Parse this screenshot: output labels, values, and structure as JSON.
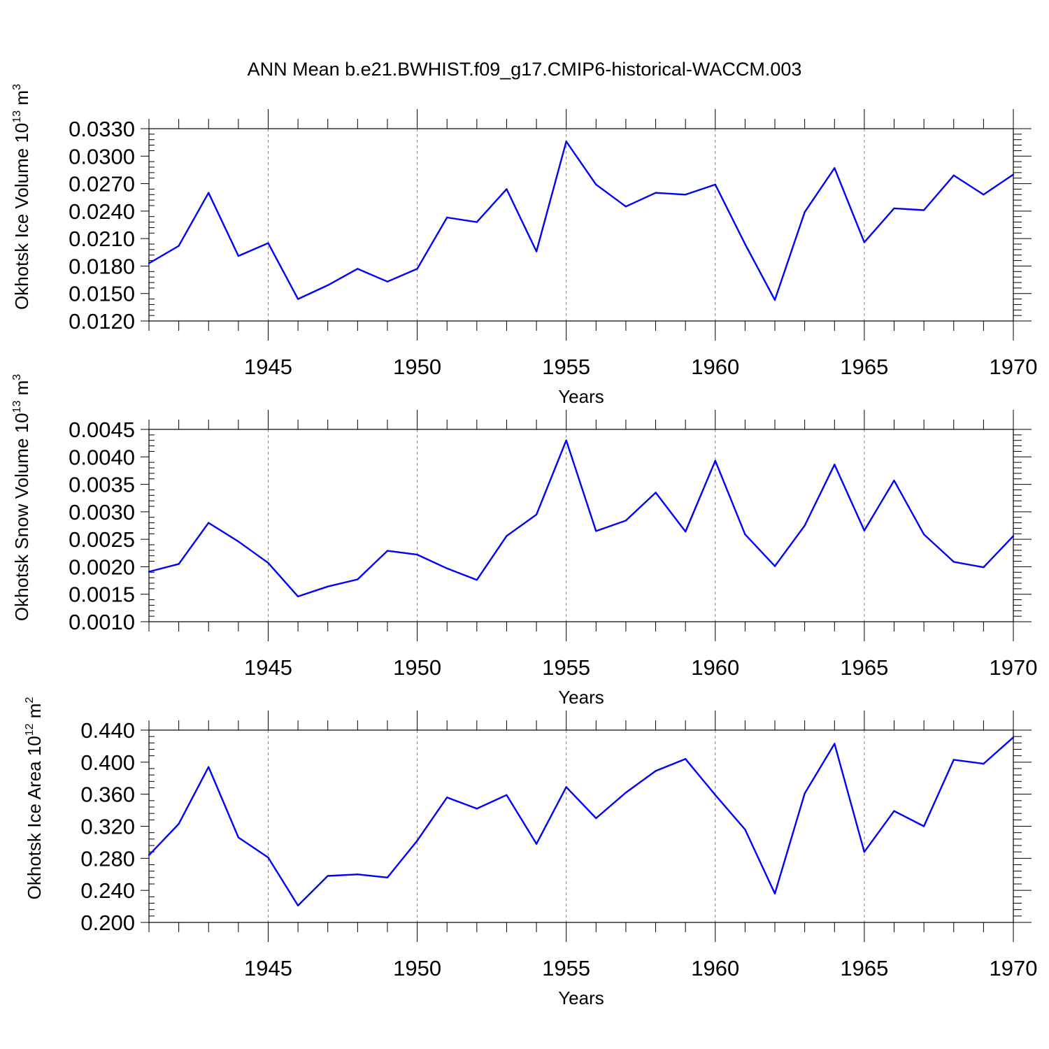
{
  "title": "ANN Mean b.e21.BWHIST.f09_g17.CMIP6-historical-WACCM.003",
  "colors": {
    "line": "#0000ff",
    "axis": "#000000",
    "grid": "#808080"
  },
  "chart_data": [
    {
      "type": "line",
      "ylabel": "Okhotsk Ice Volume 10",
      "ylabel_exp": "13",
      "ylabel_unit": "m",
      "ylabel_unit_exp": "3",
      "xlabel": "Years",
      "xlim": [
        1941,
        1970
      ],
      "ylim": [
        0.012,
        0.033
      ],
      "yticks": [
        "0.0120",
        "0.0150",
        "0.0180",
        "0.0210",
        "0.0240",
        "0.0270",
        "0.0300",
        "0.0330"
      ],
      "xticks": [
        "1945",
        "1950",
        "1955",
        "1960",
        "1965",
        "1970"
      ],
      "grid": "vertical dashed at labeled years",
      "x": [
        1941,
        1942,
        1943,
        1944,
        1945,
        1946,
        1947,
        1948,
        1949,
        1950,
        1951,
        1952,
        1953,
        1954,
        1955,
        1956,
        1957,
        1958,
        1959,
        1960,
        1961,
        1962,
        1963,
        1964,
        1965,
        1966,
        1967,
        1968,
        1969,
        1970
      ],
      "values": [
        0.0183,
        0.0202,
        0.026,
        0.0191,
        0.0205,
        0.0144,
        0.0159,
        0.0177,
        0.0163,
        0.0177,
        0.0233,
        0.0228,
        0.0264,
        0.0196,
        0.0316,
        0.0269,
        0.0245,
        0.026,
        0.0258,
        0.0269,
        0.0204,
        0.0143,
        0.0239,
        0.0287,
        0.0206,
        0.0243,
        0.0241,
        0.0279,
        0.0258,
        0.028
      ]
    },
    {
      "type": "line",
      "ylabel": "Okhotsk Snow Volume 10",
      "ylabel_exp": "13",
      "ylabel_unit": "m",
      "ylabel_unit_exp": "3",
      "xlabel": "Years",
      "xlim": [
        1941,
        1970
      ],
      "ylim": [
        0.001,
        0.0045
      ],
      "yticks": [
        "0.0010",
        "0.0015",
        "0.0020",
        "0.0025",
        "0.0030",
        "0.0035",
        "0.0040",
        "0.0045"
      ],
      "xticks": [
        "1945",
        "1950",
        "1955",
        "1960",
        "1965",
        "1970"
      ],
      "grid": "vertical dashed at labeled years",
      "x": [
        1941,
        1942,
        1943,
        1944,
        1945,
        1946,
        1947,
        1948,
        1949,
        1950,
        1951,
        1952,
        1953,
        1954,
        1955,
        1956,
        1957,
        1958,
        1959,
        1960,
        1961,
        1962,
        1963,
        1964,
        1965,
        1966,
        1967,
        1968,
        1969,
        1970
      ],
      "values": [
        0.00191,
        0.00205,
        0.0028,
        0.00246,
        0.00207,
        0.00146,
        0.00164,
        0.00177,
        0.00229,
        0.00222,
        0.00197,
        0.00176,
        0.00256,
        0.00295,
        0.0043,
        0.00265,
        0.00284,
        0.00335,
        0.00264,
        0.00393,
        0.00259,
        0.00201,
        0.00275,
        0.00386,
        0.00266,
        0.00357,
        0.00259,
        0.00209,
        0.00199,
        0.00256
      ]
    },
    {
      "type": "line",
      "ylabel": "Okhotsk Ice Area 10",
      "ylabel_exp": "12",
      "ylabel_unit": "m",
      "ylabel_unit_exp": "2",
      "xlabel": "Years",
      "xlim": [
        1941,
        1970
      ],
      "ylim": [
        0.2,
        0.44
      ],
      "yticks": [
        "0.200",
        "0.240",
        "0.280",
        "0.320",
        "0.360",
        "0.400",
        "0.440"
      ],
      "xticks": [
        "1945",
        "1950",
        "1955",
        "1960",
        "1965",
        "1970"
      ],
      "grid": "vertical dashed at labeled years",
      "x": [
        1941,
        1942,
        1943,
        1944,
        1945,
        1946,
        1947,
        1948,
        1949,
        1950,
        1951,
        1952,
        1953,
        1954,
        1955,
        1956,
        1957,
        1958,
        1959,
        1960,
        1961,
        1962,
        1963,
        1964,
        1965,
        1966,
        1967,
        1968,
        1969,
        1970
      ],
      "values": [
        0.284,
        0.323,
        0.394,
        0.306,
        0.281,
        0.221,
        0.258,
        0.26,
        0.256,
        0.302,
        0.356,
        0.342,
        0.359,
        0.298,
        0.369,
        0.33,
        0.362,
        0.389,
        0.404,
        0.359,
        0.316,
        0.236,
        0.361,
        0.423,
        0.288,
        0.339,
        0.32,
        0.403,
        0.398,
        0.431
      ]
    }
  ]
}
